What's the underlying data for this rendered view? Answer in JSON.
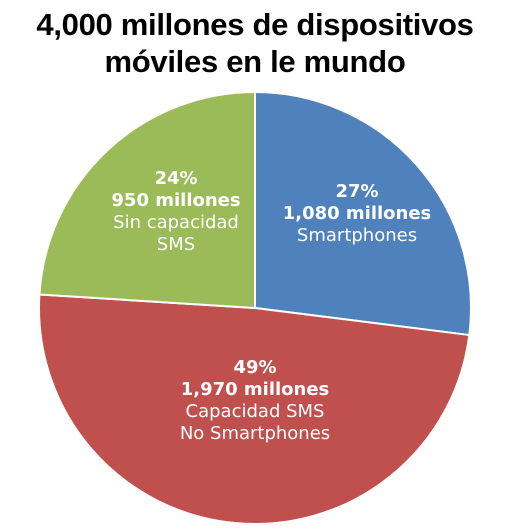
{
  "title": {
    "line1": "4,000 millones de dispositivos",
    "line2": "móviles en le mundo"
  },
  "chart_data": {
    "type": "pie",
    "title": "4,000 millones de dispositivos móviles en le mundo",
    "slices": [
      {
        "percent": 27,
        "percent_label": "27%",
        "count_label": "1,080 millones",
        "desc_lines": [
          "Smartphones"
        ],
        "value_millions": 1080,
        "color": "#4f81bd"
      },
      {
        "percent": 49,
        "percent_label": "49%",
        "count_label": "1,970 millones",
        "desc_lines": [
          "Capacidad SMS",
          "No Smartphones"
        ],
        "value_millions": 1970,
        "color": "#c0504d"
      },
      {
        "percent": 24,
        "percent_label": "24%",
        "count_label": "950 millones",
        "desc_lines": [
          "Sin capacidad",
          "SMS"
        ],
        "value_millions": 950,
        "color": "#9bbb59"
      }
    ],
    "start_angle_deg": 0,
    "direction": "clockwise",
    "border_color": "#ffffff"
  }
}
